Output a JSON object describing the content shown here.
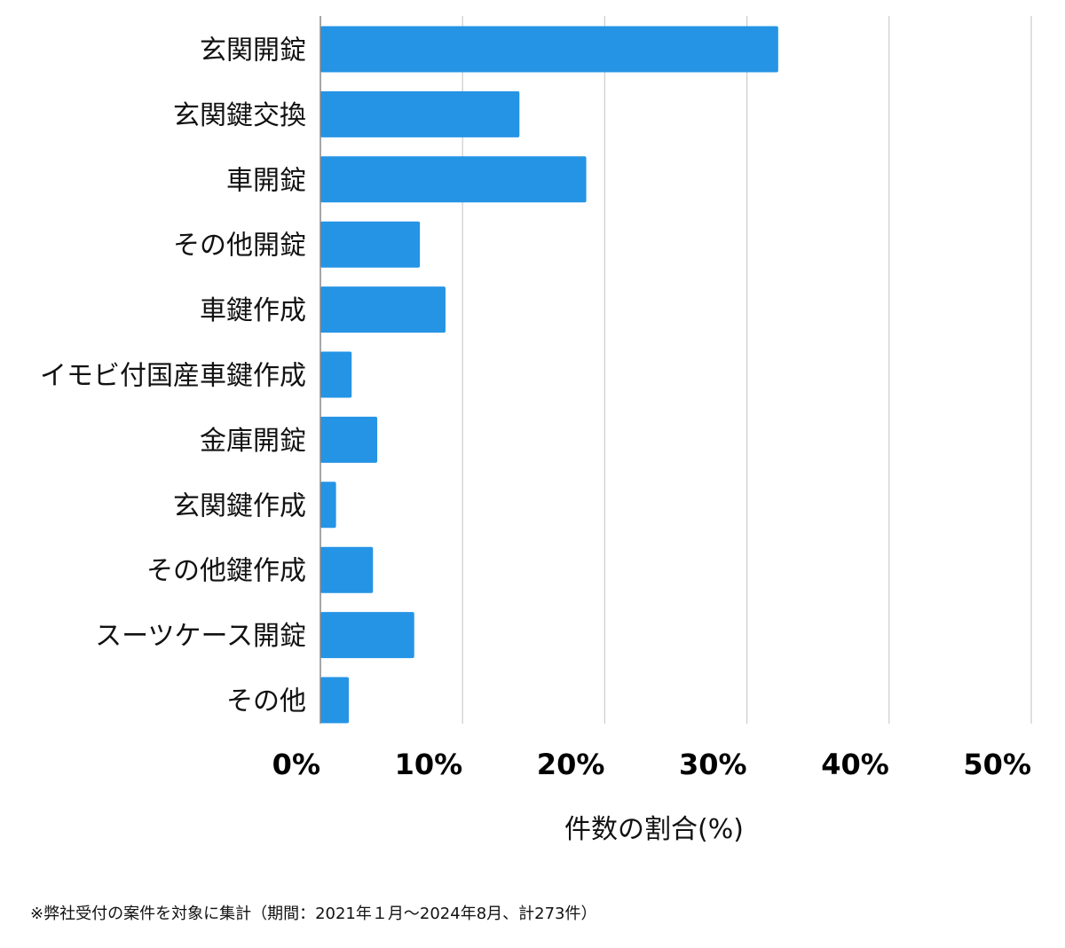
{
  "chart_data": {
    "type": "bar",
    "orientation": "horizontal",
    "categories": [
      "玄関開錠",
      "玄関鍵交換",
      "車開錠",
      "その他開錠",
      "車鍵作成",
      "イモビ付国産車鍵作成",
      "金庫開錠",
      "玄関鍵作成",
      "その他鍵作成",
      "スーツケース開錠",
      "その他"
    ],
    "values": [
      32.2,
      14.0,
      18.7,
      7.0,
      8.8,
      2.2,
      4.0,
      1.1,
      3.7,
      6.6,
      2.0
    ],
    "xlim": [
      0,
      50
    ],
    "xticks": [
      "0%",
      "10%",
      "20%",
      "30%",
      "40%",
      "50%"
    ],
    "xtick_values": [
      0,
      10,
      20,
      30,
      40,
      50
    ],
    "xlabel": "件数の割合(%)",
    "ylabel": "",
    "grid": true,
    "colors": {
      "bar": "#2594e5",
      "grid": "#cccccc",
      "axis": "#888888"
    }
  },
  "footnote": "※弊社受付の案件を対象に集計（期間：2021年１月〜2024年8月、計273件）"
}
